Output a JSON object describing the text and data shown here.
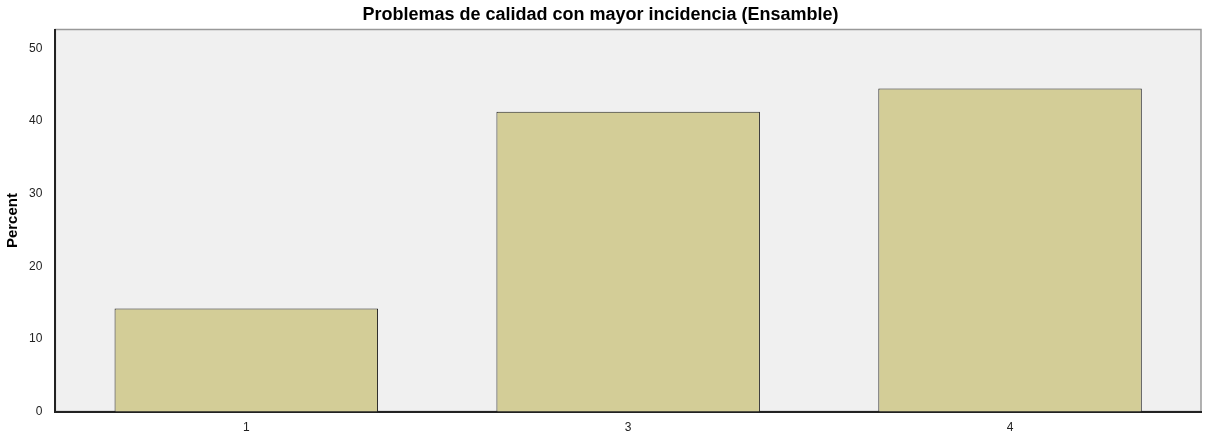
{
  "chart_data": {
    "type": "bar",
    "title": "Problemas de calidad con mayor incidencia (Ensamble)",
    "ylabel": "Percent",
    "categories": [
      "1",
      "3",
      "4"
    ],
    "values": [
      14.2,
      41.3,
      44.5
    ],
    "color": "#d3cd97",
    "ylim": [
      0,
      52.6
    ],
    "yticks": [
      0,
      10,
      20,
      30,
      40,
      50
    ],
    "grid": false
  }
}
